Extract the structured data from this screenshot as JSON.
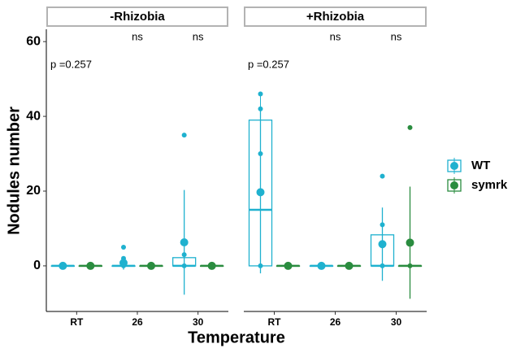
{
  "chart_data": {
    "type": "box",
    "x_label": "Temperature",
    "y_label": "Nodules number",
    "categories": [
      "RT",
      "26",
      "30"
    ],
    "ylim": [
      -12.2,
      63.3
    ],
    "yticks": [
      0,
      20,
      40,
      60
    ],
    "series": [
      {
        "name": "WT",
        "color": "#1fb1cf"
      },
      {
        "name": "symrk",
        "color": "#2a8c3f"
      }
    ],
    "facets": [
      {
        "label": "-Rhizobia",
        "annotation": "p =0.257",
        "signif": [
          null,
          "ns",
          "ns"
        ],
        "data": [
          [
            {
              "points": [
                0
              ],
              "mean": 0,
              "sd": 0,
              "box": [
                0,
                0,
                0,
                0,
                0
              ]
            },
            {
              "points": [
                5,
                2,
                0
              ],
              "mean": 0.8,
              "sd": 1.8,
              "box": [
                0,
                0,
                0,
                0,
                0
              ]
            },
            {
              "points": [
                35,
                3,
                0
              ],
              "mean": 6.3,
              "sd": 14,
              "box": [
                0,
                0,
                0,
                2.2,
                3
              ]
            }
          ],
          [
            {
              "points": [
                0
              ],
              "mean": 0,
              "sd": 0,
              "box": [
                0,
                0,
                0,
                0,
                0
              ]
            },
            {
              "points": [
                0
              ],
              "mean": 0,
              "sd": 0,
              "box": [
                0,
                0,
                0,
                0,
                0
              ]
            },
            {
              "points": [
                0
              ],
              "mean": 0,
              "sd": 0,
              "box": [
                0,
                0,
                0,
                0,
                0
              ]
            }
          ]
        ]
      },
      {
        "label": "+Rhizobia",
        "annotation": "p =0.257",
        "signif": [
          null,
          "ns",
          "ns"
        ],
        "data": [
          [
            {
              "points": [
                46,
                42,
                30,
                0
              ],
              "mean": 19.7,
              "sd": 21.7,
              "box": [
                0,
                0,
                15,
                39,
                46
              ]
            },
            {
              "points": [
                0
              ],
              "mean": 0,
              "sd": 0,
              "box": [
                0,
                0,
                0,
                0,
                0
              ]
            },
            {
              "points": [
                24,
                11,
                0
              ],
              "mean": 5.8,
              "sd": 9.8,
              "box": [
                0,
                0,
                0,
                8.3,
                11
              ]
            }
          ],
          [
            {
              "points": [
                0
              ],
              "mean": 0,
              "sd": 0,
              "box": [
                0,
                0,
                0,
                0,
                0
              ]
            },
            {
              "points": [
                0
              ],
              "mean": 0,
              "sd": 0,
              "box": [
                0,
                0,
                0,
                0,
                0
              ]
            },
            {
              "points": [
                37,
                0
              ],
              "mean": 6.2,
              "sd": 15,
              "box": [
                0,
                0,
                0,
                0,
                0
              ]
            }
          ]
        ]
      }
    ]
  }
}
